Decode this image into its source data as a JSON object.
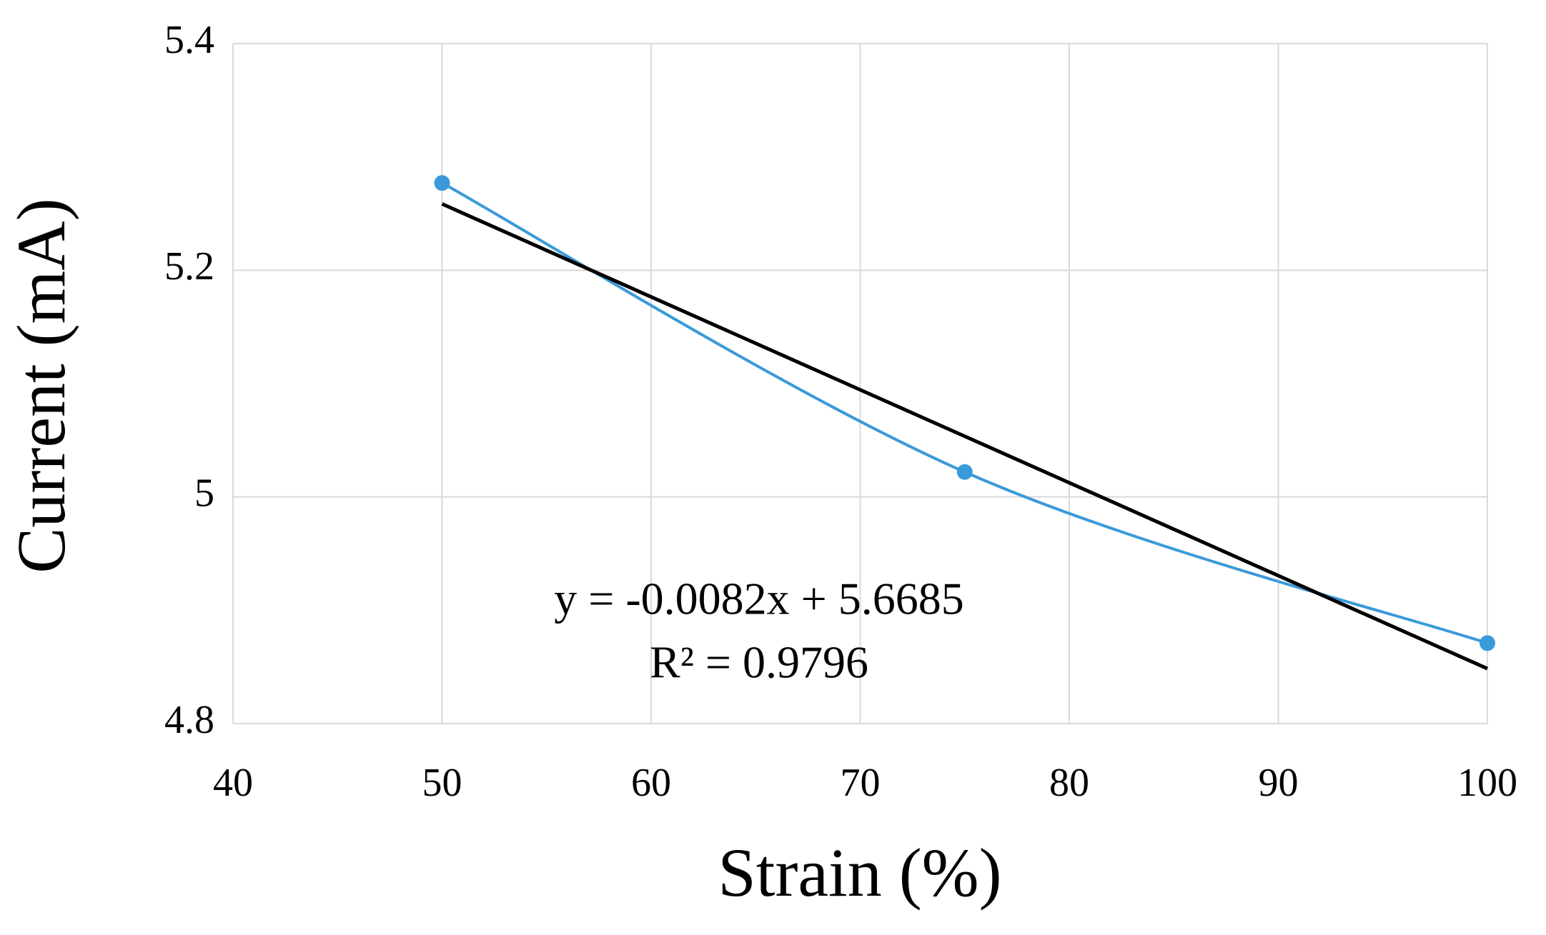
{
  "chart_data": {
    "type": "scatter",
    "x_label": "Strain (%)",
    "y_label": "Current (mA)",
    "series": [
      {
        "name": "Current",
        "color": "#3a9ad9",
        "x": [
          50,
          75,
          100
        ],
        "values": [
          5.277,
          5.022,
          4.871
        ]
      }
    ],
    "trendline": {
      "color": "#000000",
      "x": [
        50,
        100
      ],
      "values": [
        5.2585,
        4.8485
      ]
    },
    "annotations": [
      "y = -0.0082x + 5.6685",
      "R² = 0.9796"
    ],
    "xlim": [
      40,
      100
    ],
    "xticks": [
      40,
      50,
      60,
      70,
      80,
      90,
      100
    ],
    "ylim": [
      4.8,
      5.4
    ],
    "yticks": [
      4.8,
      5,
      5.2,
      5.4
    ],
    "grid": true,
    "smooth": true
  }
}
